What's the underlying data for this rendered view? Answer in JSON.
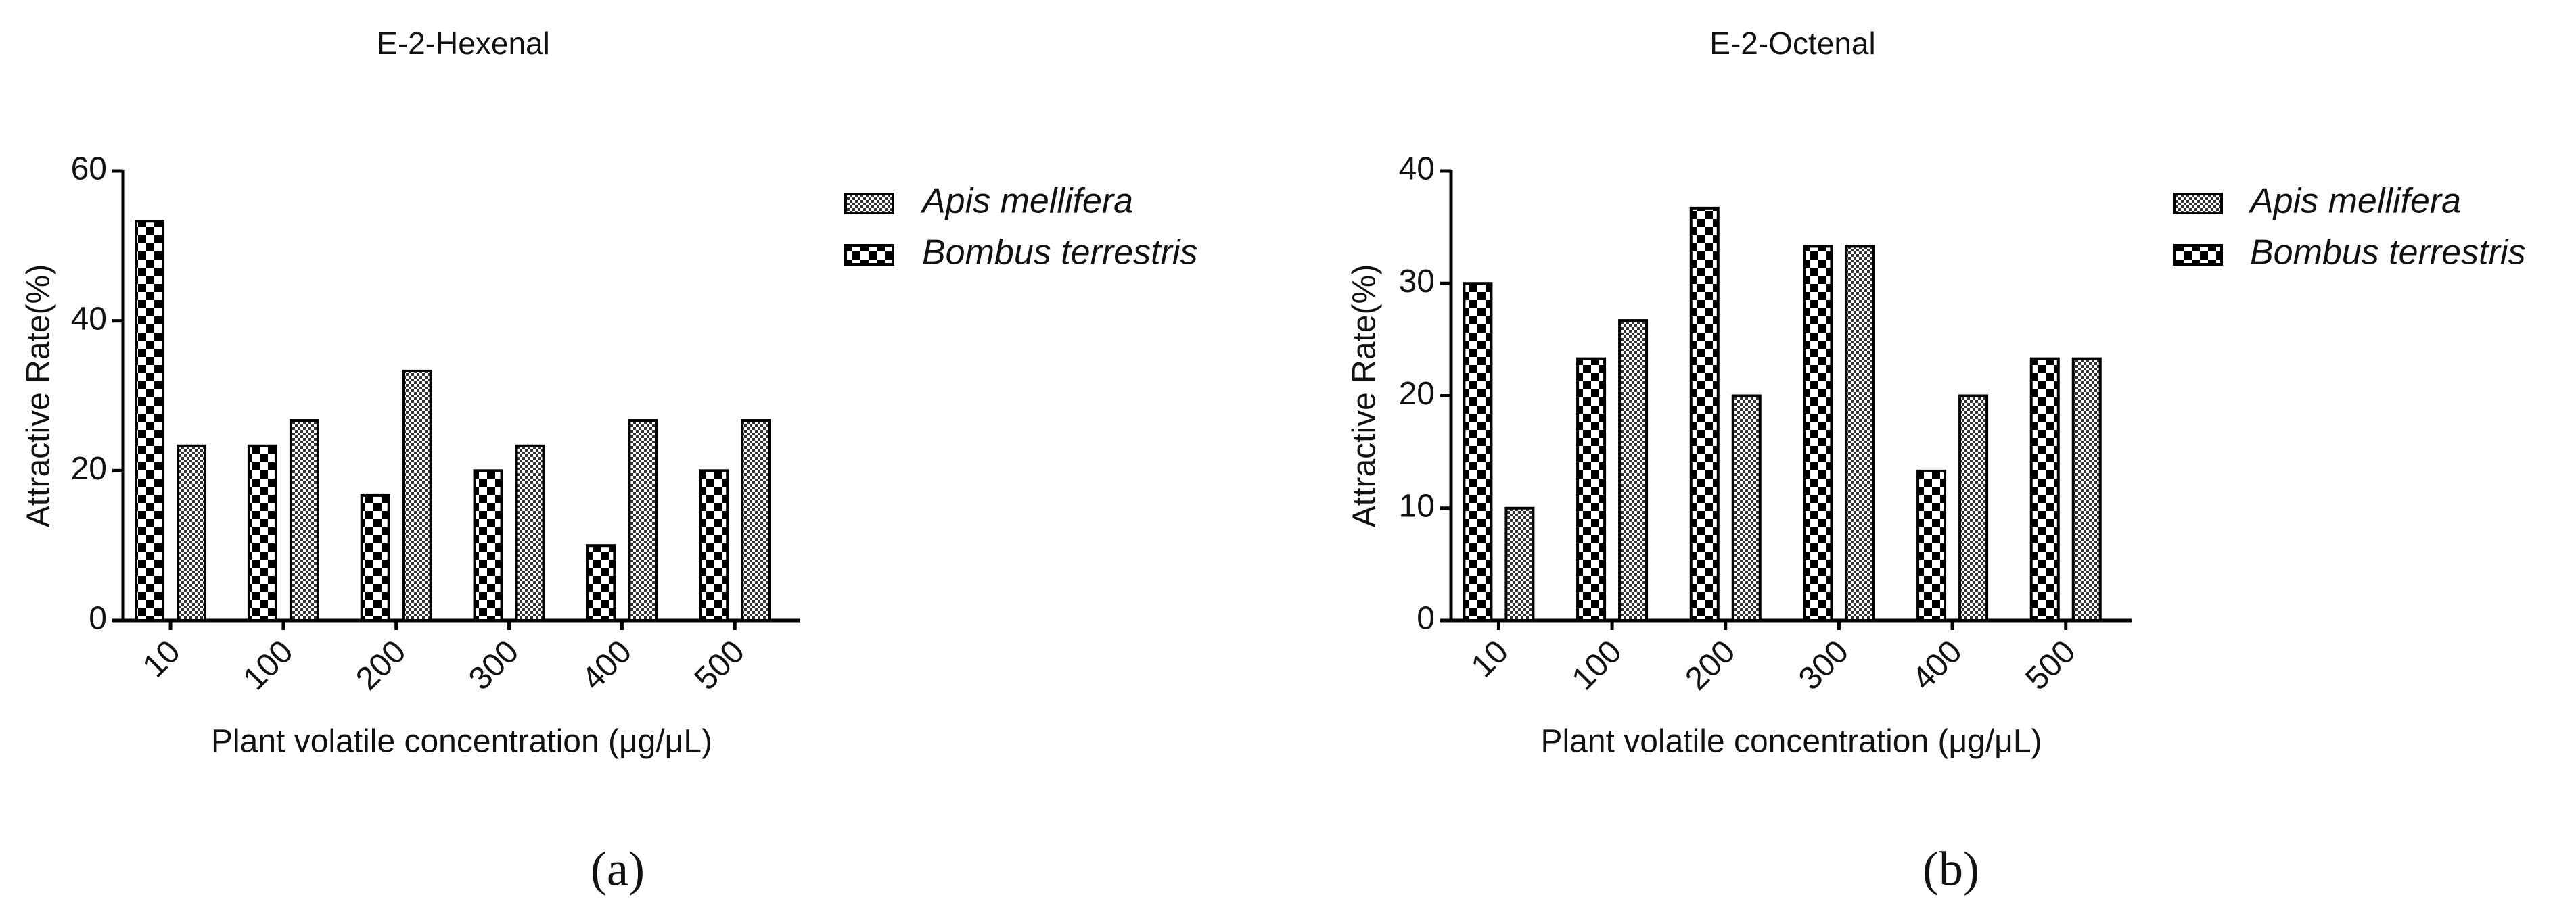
{
  "chart_data": [
    {
      "type": "bar",
      "title": "E-2-Hexenal",
      "panel_label": "(a)",
      "x_label": "Plant volatile concentration (μg/μL)",
      "y_label": "Attractive Rate(%)",
      "categories": [
        "10",
        "100",
        "200",
        "300",
        "400",
        "500"
      ],
      "series": [
        {
          "name": "Apis mellifera",
          "color": "#000000",
          "pattern": "fine",
          "values": [
            23.3,
            26.7,
            33.3,
            23.3,
            26.7,
            26.7
          ]
        },
        {
          "name": "Bombus terrestris",
          "color": "#000000",
          "pattern": "checker",
          "values": [
            53.3,
            23.3,
            16.7,
            20,
            10,
            20
          ]
        }
      ],
      "ylim": [
        0,
        60
      ],
      "yticks": [
        0,
        20,
        40,
        60
      ]
    },
    {
      "type": "bar",
      "title": "E-2-Octenal",
      "panel_label": "(b)",
      "x_label": "Plant volatile concentration (μg/μL)",
      "y_label": "Attractive Rate(%)",
      "categories": [
        "10",
        "100",
        "200",
        "300",
        "400",
        "500"
      ],
      "series": [
        {
          "name": "Apis mellifera",
          "color": "#000000",
          "pattern": "fine",
          "values": [
            10,
            26.7,
            20,
            33.3,
            20,
            23.3
          ]
        },
        {
          "name": "Bombus terrestris",
          "color": "#000000",
          "pattern": "checker",
          "values": [
            30,
            23.3,
            36.7,
            33.3,
            13.3,
            23.3
          ]
        }
      ],
      "ylim": [
        0,
        40
      ],
      "yticks": [
        0,
        10,
        20,
        30,
        40
      ]
    }
  ]
}
